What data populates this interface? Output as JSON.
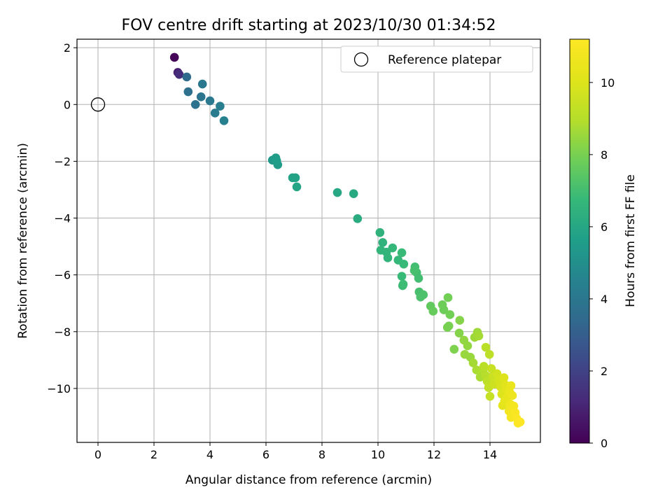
{
  "chart_data": {
    "type": "scatter",
    "title": "FOV centre drift starting at 2023/10/30 01:34:52",
    "xlabel": "Angular distance from reference (arcmin)",
    "ylabel": "Rotation from reference (arcmin)",
    "xlim": [
      -0.75,
      15.8
    ],
    "ylim": [
      -11.9,
      2.3
    ],
    "x_ticks": [
      0,
      2,
      4,
      6,
      8,
      10,
      12,
      14
    ],
    "y_ticks": [
      2,
      0,
      -2,
      -4,
      -6,
      -8,
      -10
    ],
    "x_tick_labels": [
      "0",
      "2",
      "4",
      "6",
      "8",
      "10",
      "12",
      "14"
    ],
    "y_tick_labels": [
      "2",
      "0",
      "−2",
      "−4",
      "−6",
      "−8",
      "−10"
    ],
    "grid": true,
    "legend": {
      "placement": "top-right",
      "entries": [
        "Reference platepar"
      ]
    },
    "reference": {
      "x": 0,
      "y": 0,
      "label": "Reference platepar"
    },
    "colorbar": {
      "label": "Hours from first FF file",
      "colormap": "viridis",
      "range": [
        0,
        11.2
      ],
      "ticks": [
        0,
        2,
        4,
        6,
        8,
        10
      ],
      "tick_labels": [
        "0",
        "2",
        "4",
        "6",
        "8",
        "10"
      ]
    },
    "points": [
      [
        2.73,
        1.66,
        0.1
      ],
      [
        2.85,
        1.13,
        0.9
      ],
      [
        2.9,
        1.06,
        1.3
      ],
      [
        3.17,
        0.97,
        3.5
      ],
      [
        3.22,
        0.45,
        3.7
      ],
      [
        3.48,
        0.0,
        3.8
      ],
      [
        3.68,
        0.27,
        3.9
      ],
      [
        3.73,
        0.72,
        4.0
      ],
      [
        4.0,
        0.13,
        4.1
      ],
      [
        4.18,
        -0.3,
        4.2
      ],
      [
        4.36,
        -0.06,
        4.3
      ],
      [
        4.5,
        -0.57,
        4.4
      ],
      [
        6.23,
        -1.96,
        5.4
      ],
      [
        6.35,
        -1.88,
        5.5
      ],
      [
        6.42,
        -2.12,
        5.5
      ],
      [
        6.38,
        -1.98,
        5.6
      ],
      [
        6.95,
        -2.58,
        5.8
      ],
      [
        7.05,
        -2.58,
        5.8
      ],
      [
        7.1,
        -2.9,
        5.9
      ],
      [
        8.55,
        -3.1,
        6.0
      ],
      [
        9.13,
        -3.14,
        6.1
      ],
      [
        9.27,
        -4.02,
        6.2
      ],
      [
        10.07,
        -4.51,
        6.5
      ],
      [
        10.17,
        -4.86,
        6.5
      ],
      [
        10.1,
        -5.13,
        6.6
      ],
      [
        10.3,
        -5.2,
        6.6
      ],
      [
        10.35,
        -5.4,
        6.6
      ],
      [
        10.52,
        -5.05,
        6.7
      ],
      [
        10.72,
        -5.48,
        6.7
      ],
      [
        10.85,
        -5.22,
        6.8
      ],
      [
        10.92,
        -5.62,
        6.8
      ],
      [
        10.85,
        -6.05,
        6.8
      ],
      [
        10.88,
        -6.38,
        6.9
      ],
      [
        10.9,
        -6.33,
        6.9
      ],
      [
        11.32,
        -5.72,
        7.0
      ],
      [
        11.38,
        -5.92,
        7.0
      ],
      [
        11.45,
        -6.12,
        7.0
      ],
      [
        11.3,
        -5.85,
        7.1
      ],
      [
        11.47,
        -6.6,
        7.1
      ],
      [
        11.52,
        -6.78,
        7.2
      ],
      [
        11.62,
        -6.7,
        7.2
      ],
      [
        11.88,
        -7.1,
        7.6
      ],
      [
        11.97,
        -7.28,
        7.7
      ],
      [
        12.3,
        -7.05,
        7.8
      ],
      [
        12.35,
        -7.23,
        7.8
      ],
      [
        12.5,
        -6.8,
        7.9
      ],
      [
        12.57,
        -7.4,
        7.9
      ],
      [
        12.48,
        -7.85,
        8.0
      ],
      [
        12.53,
        -7.8,
        8.0
      ],
      [
        12.72,
        -8.62,
        8.1
      ],
      [
        12.92,
        -7.6,
        8.2
      ],
      [
        12.9,
        -8.05,
        8.2
      ],
      [
        13.07,
        -8.3,
        8.4
      ],
      [
        13.2,
        -8.5,
        8.4
      ],
      [
        13.1,
        -8.8,
        8.5
      ],
      [
        13.3,
        -8.9,
        8.5
      ],
      [
        13.45,
        -8.2,
        8.6
      ],
      [
        13.55,
        -8.02,
        8.6
      ],
      [
        13.6,
        -8.15,
        8.7
      ],
      [
        13.4,
        -9.1,
        8.7
      ],
      [
        13.52,
        -9.35,
        8.8
      ],
      [
        13.65,
        -9.6,
        8.8
      ],
      [
        13.75,
        -9.4,
        8.9
      ],
      [
        13.85,
        -9.55,
        9.0
      ],
      [
        13.78,
        -9.22,
        9.1
      ],
      [
        13.9,
        -9.75,
        9.2
      ],
      [
        13.95,
        -9.97,
        9.3
      ],
      [
        13.85,
        -8.55,
        9.1
      ],
      [
        13.98,
        -8.8,
        9.2
      ],
      [
        14.05,
        -9.3,
        9.4
      ],
      [
        14.1,
        -9.58,
        9.5
      ],
      [
        14.0,
        -10.28,
        9.4
      ],
      [
        14.15,
        -9.85,
        9.6
      ],
      [
        14.25,
        -9.48,
        9.7
      ],
      [
        14.32,
        -9.7,
        9.8
      ],
      [
        14.38,
        -9.95,
        9.9
      ],
      [
        14.42,
        -10.2,
        10.0
      ],
      [
        14.5,
        -9.62,
        10.0
      ],
      [
        14.55,
        -9.88,
        10.1
      ],
      [
        14.6,
        -10.05,
        10.2
      ],
      [
        14.45,
        -10.6,
        10.2
      ],
      [
        14.52,
        -10.45,
        10.3
      ],
      [
        14.62,
        -10.3,
        10.4
      ],
      [
        14.7,
        -10.12,
        10.5
      ],
      [
        14.75,
        -9.9,
        10.5
      ],
      [
        14.8,
        -10.25,
        10.6
      ],
      [
        14.72,
        -10.55,
        10.7
      ],
      [
        14.68,
        -10.8,
        10.8
      ],
      [
        14.75,
        -11.02,
        10.9
      ],
      [
        14.85,
        -10.62,
        10.9
      ],
      [
        14.9,
        -10.85,
        11.0
      ],
      [
        14.95,
        -11.05,
        11.1
      ],
      [
        15.0,
        -11.22,
        11.15
      ],
      [
        15.08,
        -11.18,
        11.2
      ]
    ]
  }
}
